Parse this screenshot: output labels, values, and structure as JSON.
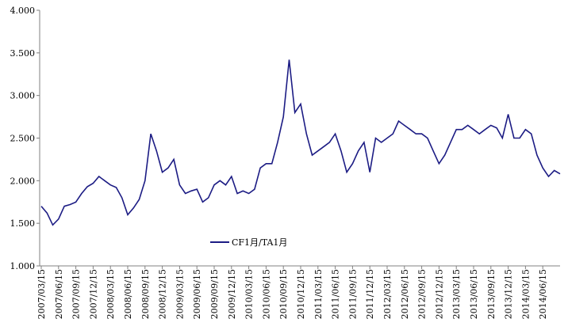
{
  "chart_data": {
    "type": "line",
    "x": [
      "2007/03/15",
      "2007/04/15",
      "2007/05/15",
      "2007/06/15",
      "2007/07/15",
      "2007/08/15",
      "2007/09/15",
      "2007/10/15",
      "2007/11/15",
      "2007/12/15",
      "2008/01/15",
      "2008/02/15",
      "2008/03/15",
      "2008/04/15",
      "2008/05/15",
      "2008/06/15",
      "2008/07/15",
      "2008/08/15",
      "2008/09/15",
      "2008/10/15",
      "2008/11/15",
      "2008/12/15",
      "2009/01/15",
      "2009/02/15",
      "2009/03/15",
      "2009/04/15",
      "2009/05/15",
      "2009/06/15",
      "2009/07/15",
      "2009/08/15",
      "2009/09/15",
      "2009/10/15",
      "2009/11/15",
      "2009/12/15",
      "2010/01/15",
      "2010/02/15",
      "2010/03/15",
      "2010/04/15",
      "2010/05/15",
      "2010/06/15",
      "2010/07/15",
      "2010/08/15",
      "2010/09/15",
      "2010/10/15",
      "2010/11/15",
      "2010/12/15",
      "2011/01/15",
      "2011/02/15",
      "2011/03/15",
      "2011/04/15",
      "2011/05/15",
      "2011/06/15",
      "2011/07/15",
      "2011/08/15",
      "2011/09/15",
      "2011/10/15",
      "2011/11/15",
      "2011/12/15",
      "2012/01/15",
      "2012/02/15",
      "2012/03/15",
      "2012/04/15",
      "2012/05/15",
      "2012/06/15",
      "2012/07/15",
      "2012/08/15",
      "2012/09/15",
      "2012/10/15",
      "2012/11/15",
      "2012/12/15",
      "2013/01/15",
      "2013/02/15",
      "2013/03/15",
      "2013/04/15",
      "2013/05/15",
      "2013/06/15",
      "2013/07/15",
      "2013/08/15",
      "2013/09/15",
      "2013/10/15",
      "2013/11/15",
      "2013/12/15",
      "2014/01/15",
      "2014/02/15",
      "2014/03/15",
      "2014/04/15",
      "2014/05/15",
      "2014/06/15",
      "2014/07/15",
      "2014/08/15",
      "2014/09/15"
    ],
    "series": [
      {
        "name": "CF1月/TA1月",
        "color": "#1c1c84",
        "values": [
          1.7,
          1.62,
          1.48,
          1.55,
          1.7,
          1.72,
          1.75,
          1.85,
          1.93,
          1.97,
          2.05,
          2.0,
          1.95,
          1.92,
          1.8,
          1.6,
          1.68,
          1.78,
          2.0,
          2.55,
          2.35,
          2.1,
          2.15,
          2.25,
          1.95,
          1.85,
          1.88,
          1.9,
          1.75,
          1.8,
          1.95,
          2.0,
          1.95,
          2.05,
          1.85,
          1.88,
          1.85,
          1.9,
          2.15,
          2.2,
          2.2,
          2.45,
          2.75,
          3.42,
          2.8,
          2.9,
          2.55,
          2.3,
          2.35,
          2.4,
          2.45,
          2.55,
          2.35,
          2.1,
          2.2,
          2.35,
          2.45,
          2.1,
          2.5,
          2.45,
          2.5,
          2.55,
          2.7,
          2.65,
          2.6,
          2.55,
          2.55,
          2.5,
          2.35,
          2.2,
          2.3,
          2.45,
          2.6,
          2.6,
          2.65,
          2.6,
          2.55,
          2.6,
          2.65,
          2.62,
          2.5,
          2.78,
          2.5,
          2.5,
          2.6,
          2.55,
          2.3,
          2.15,
          2.05,
          2.12,
          2.08
        ]
      }
    ],
    "xticks": [
      "2007/03/15",
      "2007/06/15",
      "2007/09/15",
      "2007/12/15",
      "2008/03/15",
      "2008/06/15",
      "2008/09/15",
      "2008/12/15",
      "2009/03/15",
      "2009/06/15",
      "2009/09/15",
      "2009/12/15",
      "2010/03/15",
      "2010/06/15",
      "2010/09/15",
      "2010/12/15",
      "2011/03/15",
      "2011/06/15",
      "2011/09/15",
      "2011/12/15",
      "2012/03/15",
      "2012/06/15",
      "2012/09/15",
      "2012/12/15",
      "2013/03/15",
      "2013/06/15",
      "2013/09/15",
      "2013/12/15",
      "2014/03/15",
      "2014/06/15"
    ],
    "ylim": [
      1,
      4
    ],
    "yticks": [
      {
        "value": 1,
        "label": "1.000"
      },
      {
        "value": 1.5,
        "label": "1.500"
      },
      {
        "value": 2,
        "label": "2.000"
      },
      {
        "value": 2.5,
        "label": "2.500"
      },
      {
        "value": 3,
        "label": "3.000"
      },
      {
        "value": 3.5,
        "label": "3.500"
      },
      {
        "value": 4,
        "label": "4.000"
      }
    ],
    "grid": false
  }
}
